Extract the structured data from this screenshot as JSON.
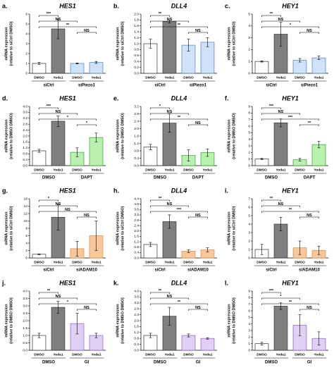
{
  "chart_data": [
    {
      "type": "bar",
      "label": "a.",
      "title": "HES1",
      "ylabel": [
        "mRNA expression",
        "(relative to siCtrl DMSO)"
      ],
      "categories": [
        "DMSO",
        "Yoda1",
        "DMSO",
        "Yoda1"
      ],
      "groups": [
        "siCtrl",
        "siPiezo1"
      ],
      "values": [
        1,
        4.5,
        1.0,
        1.1
      ],
      "errors": [
        0.1,
        1.0,
        0.05,
        0.1
      ],
      "colors": [
        "#ffffff",
        "#7f7f7f",
        "#cfe2f7",
        "#cfe2f7"
      ],
      "edgecolors": [
        "#333333",
        "#333333",
        "#4a7fd0",
        "#4a7fd0"
      ],
      "ylim": [
        0,
        6
      ],
      "yticks": [
        0,
        1,
        2,
        3,
        4,
        5,
        6
      ],
      "brackets": [
        {
          "from": 0,
          "to": 1,
          "label": "***"
        },
        {
          "from": 0,
          "to": 2,
          "label": "NS"
        },
        {
          "from": 0,
          "to": 3,
          "label": "**"
        },
        {
          "from": 2,
          "to": 3,
          "label": "NS"
        }
      ]
    },
    {
      "type": "bar",
      "label": "b.",
      "title": "DLL4",
      "ylabel": [
        "mRNA expression",
        "(relative to siCtrl DMSO)"
      ],
      "categories": [
        "DMSO",
        "Yoda1",
        "DMSO",
        "Yoda1"
      ],
      "groups": [
        "siCtrl",
        "siPiezo1"
      ],
      "values": [
        1,
        1.75,
        0.95,
        1.05
      ],
      "errors": [
        0.15,
        0.05,
        0.2,
        0.15
      ],
      "colors": [
        "#ffffff",
        "#7f7f7f",
        "#cfe2f7",
        "#cfe2f7"
      ],
      "edgecolors": [
        "#333333",
        "#333333",
        "#4a7fd0",
        "#4a7fd0"
      ],
      "ylim": [
        0,
        2
      ],
      "yticks": [
        {
          "value": 0,
          "label": "0.0"
        },
        0.2,
        0.4,
        0.6,
        0.8,
        {
          "value": 1,
          "label": "1.0"
        },
        1.2,
        1.4,
        1.6,
        1.8,
        {
          "value": 2,
          "label": "2.0"
        }
      ],
      "brackets": [
        {
          "from": 0,
          "to": 1,
          "label": "**"
        },
        {
          "from": 0,
          "to": 2,
          "label": "NS"
        },
        {
          "from": 0,
          "to": 3,
          "label": "**"
        },
        {
          "from": 2,
          "to": 3,
          "label": "NS"
        }
      ]
    },
    {
      "type": "bar",
      "label": "c.",
      "title": "HEY1",
      "ylabel": [
        "mRNA expression",
        "(relative to siCtrl DMSO)"
      ],
      "categories": [
        "DMSO",
        "Yoda1",
        "DMSO",
        "Yoda1"
      ],
      "groups": [
        "siCtrl",
        "siPiezo1"
      ],
      "values": [
        1,
        3.3,
        1.1,
        1.3
      ],
      "errors": [
        0.05,
        1.0,
        0.15,
        0.15
      ],
      "colors": [
        "#ffffff",
        "#7f7f7f",
        "#cfe2f7",
        "#cfe2f7"
      ],
      "edgecolors": [
        "#333333",
        "#333333",
        "#4a7fd0",
        "#4a7fd0"
      ],
      "ylim": [
        0,
        5
      ],
      "yticks": [
        0,
        1,
        2,
        3,
        4,
        5
      ],
      "brackets": [
        {
          "from": 0,
          "to": 1,
          "label": "**"
        },
        {
          "from": 0,
          "to": 2,
          "label": "NS"
        },
        {
          "from": 0,
          "to": 3,
          "label": "*"
        },
        {
          "from": 2,
          "to": 3,
          "label": "NS"
        }
      ]
    },
    {
      "type": "bar",
      "label": "d.",
      "title": "HES1",
      "ylabel": [
        "mRNA expression",
        "(relative to DMSO DMSO)"
      ],
      "categories": [
        "DMSO",
        "Yoda1",
        "DMSO",
        "Yoda1"
      ],
      "groups": [
        "DMSO",
        "DAPT"
      ],
      "values": [
        1,
        3.0,
        0.9,
        1.9
      ],
      "errors": [
        0.1,
        0.35,
        0.3,
        0.3
      ],
      "colors": [
        "#ffffff",
        "#7f7f7f",
        "#b9f2ae",
        "#b9f2ae"
      ],
      "edgecolors": [
        "#333333",
        "#333333",
        "#2ea02e",
        "#2ea02e"
      ],
      "ylim": [
        0,
        4
      ],
      "yticks": [
        {
          "value": 0,
          "label": "0.0"
        },
        0.4,
        0.8,
        1.2,
        1.6,
        {
          "value": 2,
          "label": "2.0"
        },
        2.4,
        2.8,
        3.2,
        3.6,
        {
          "value": 4,
          "label": "4.0"
        }
      ],
      "brackets": [
        {
          "from": 0,
          "to": 1,
          "label": "***"
        },
        {
          "from": 0,
          "to": 2,
          "label": "NS"
        },
        {
          "from": 0,
          "to": 3,
          "label": "*"
        },
        {
          "from": 2,
          "to": 3,
          "label": "*"
        }
      ]
    },
    {
      "type": "bar",
      "label": "e.",
      "title": "DLL4",
      "ylabel": [
        "mRNA expression",
        "(relative to DMSO DMSO)"
      ],
      "categories": [
        "DMSO",
        "Yoda1",
        "DMSO",
        "Yoda1"
      ],
      "groups": [
        "DMSO",
        "DAPT"
      ],
      "values": [
        1,
        2.3,
        0.55,
        0.7
      ],
      "errors": [
        0.15,
        0.5,
        0.3,
        0.2
      ],
      "colors": [
        "#ffffff",
        "#7f7f7f",
        "#b9f2ae",
        "#b9f2ae"
      ],
      "edgecolors": [
        "#333333",
        "#333333",
        "#2ea02e",
        "#2ea02e"
      ],
      "ylim": [
        0,
        3.2
      ],
      "yticks": [
        {
          "value": 0,
          "label": "0.0"
        },
        0.4,
        0.8,
        1.2,
        1.6,
        {
          "value": 2,
          "label": "2.0"
        },
        2.4,
        2.8,
        3.2
      ],
      "brackets": [
        {
          "from": 0,
          "to": 1,
          "label": "*"
        },
        {
          "from": 0,
          "to": 2,
          "label": "NS"
        },
        {
          "from": 0,
          "to": 3,
          "label": "**"
        },
        {
          "from": 2,
          "to": 3,
          "label": "NS"
        }
      ]
    },
    {
      "type": "bar",
      "label": "f.",
      "title": "HEY1",
      "ylabel": [
        "mRNA expression",
        "(relative to DMSO DMSO)"
      ],
      "categories": [
        "DMSO",
        "Yoda1",
        "DMSO",
        "Yoda1"
      ],
      "groups": [
        "DMSO",
        "DAPT"
      ],
      "values": [
        1,
        6.5,
        0.9,
        3.2
      ],
      "errors": [
        0.1,
        0.6,
        0.2,
        0.5
      ],
      "colors": [
        "#ffffff",
        "#7f7f7f",
        "#b9f2ae",
        "#b9f2ae"
      ],
      "edgecolors": [
        "#333333",
        "#333333",
        "#2ea02e",
        "#2ea02e"
      ],
      "ylim": [
        0,
        9
      ],
      "yticks": [
        0,
        1,
        2,
        3,
        4,
        5,
        6,
        7,
        8,
        9
      ],
      "brackets": [
        {
          "from": 0,
          "to": 1,
          "label": "***"
        },
        {
          "from": 0,
          "to": 2,
          "label": "NS"
        },
        {
          "from": 0,
          "to": 3,
          "label": "***"
        },
        {
          "from": 2,
          "to": 3,
          "label": "**"
        }
      ]
    },
    {
      "type": "bar",
      "label": "g.",
      "title": "HES1",
      "ylabel": [
        "mRNA expression",
        "(relative to siCtrl DMSO)"
      ],
      "categories": [
        "DMSO",
        "Yoda1",
        "DMSO",
        "Yoda1"
      ],
      "groups": [
        "siCtrl",
        "siADAM10"
      ],
      "values": [
        1,
        11,
        2.5,
        6
      ],
      "errors": [
        0.1,
        3.5,
        2.0,
        4.0
      ],
      "colors": [
        "#ffffff",
        "#7f7f7f",
        "#f8c79b",
        "#f8c79b"
      ],
      "edgecolors": [
        "#333333",
        "#333333",
        "#e08a3c",
        "#e08a3c"
      ],
      "ylim": [
        0,
        16
      ],
      "yticks": [
        0,
        2,
        4,
        6,
        8,
        10,
        12,
        14,
        16
      ],
      "brackets": [
        {
          "from": 0,
          "to": 1,
          "label": "*"
        },
        {
          "from": 0,
          "to": 2,
          "label": "NS"
        },
        {
          "from": 0,
          "to": 3,
          "label": "NS"
        },
        {
          "from": 2,
          "to": 3,
          "label": "NS"
        }
      ]
    },
    {
      "type": "bar",
      "label": "h.",
      "title": "DLL4",
      "ylabel": [
        "mRNA expression",
        "(relative to siCtrl DMSO)"
      ],
      "categories": [
        "DMSO",
        "Yoda1",
        "DMSO",
        "Yoda1"
      ],
      "groups": [
        "siCtrl",
        "siADAM10"
      ],
      "values": [
        1,
        2.7,
        0.5,
        0.6
      ],
      "errors": [
        0.15,
        0.5,
        0.1,
        0.15
      ],
      "colors": [
        "#ffffff",
        "#7f7f7f",
        "#f8c79b",
        "#f8c79b"
      ],
      "edgecolors": [
        "#333333",
        "#333333",
        "#e08a3c",
        "#e08a3c"
      ],
      "ylim": [
        0,
        4.4
      ],
      "yticks": [
        {
          "value": 0,
          "label": "0.0"
        },
        0.4,
        0.8,
        1.2,
        1.6,
        {
          "value": 2,
          "label": "2.0"
        },
        2.4,
        2.8,
        3.2,
        3.6,
        {
          "value": 4,
          "label": "4.0"
        },
        4.4
      ],
      "brackets": [
        {
          "from": 0,
          "to": 1,
          "label": "**"
        },
        {
          "from": 0,
          "to": 2,
          "label": "NS"
        },
        {
          "from": 0,
          "to": 3,
          "label": "***"
        },
        {
          "from": 2,
          "to": 3,
          "label": "NS"
        }
      ]
    },
    {
      "type": "bar",
      "label": "i.",
      "title": "HEY1",
      "ylabel": [
        "mRNA expression",
        "(relative to siCtrl DMSO)"
      ],
      "categories": [
        "DMSO",
        "Yoda1",
        "DMSO",
        "Yoda1"
      ],
      "groups": [
        "siCtrl",
        "siADAM10"
      ],
      "values": [
        1,
        4,
        1.2,
        0.9
      ],
      "errors": [
        0.6,
        0.8,
        0.8,
        0.5
      ],
      "colors": [
        "#ffffff",
        "#7f7f7f",
        "#f8c79b",
        "#f8c79b"
      ],
      "edgecolors": [
        "#333333",
        "#333333",
        "#e08a3c",
        "#e08a3c"
      ],
      "ylim": [
        0,
        7
      ],
      "yticks": [
        0,
        1,
        2,
        3,
        4,
        5,
        6,
        7
      ],
      "brackets": [
        {
          "from": 0,
          "to": 1,
          "label": "**"
        },
        {
          "from": 0,
          "to": 2,
          "label": "NS"
        },
        {
          "from": 0,
          "to": 3,
          "label": "**"
        },
        {
          "from": 2,
          "to": 3,
          "label": "NS"
        }
      ]
    },
    {
      "type": "bar",
      "label": "j.",
      "title": "HES1",
      "ylabel": [
        "mRNA expression",
        "(relative to DMSO DMSO)"
      ],
      "categories": [
        "DMSO",
        "Yoda1",
        "DMSO",
        "Yoda1"
      ],
      "groups": [
        "DMSO",
        "GI"
      ],
      "values": [
        1,
        2.9,
        1.8,
        1.0
      ],
      "errors": [
        0.15,
        0.4,
        0.7,
        0.15
      ],
      "colors": [
        "#ffffff",
        "#7f7f7f",
        "#e0d0f5",
        "#e0d0f5"
      ],
      "edgecolors": [
        "#333333",
        "#333333",
        "#8a5cc8",
        "#8a5cc8"
      ],
      "ylim": [
        0,
        4
      ],
      "yticks": [
        {
          "value": 0,
          "label": "0.0"
        },
        0.5,
        {
          "value": 1,
          "label": "1.0"
        },
        1.5,
        {
          "value": 2,
          "label": "2.0"
        },
        2.5,
        {
          "value": 3,
          "label": "3.0"
        },
        3.5,
        {
          "value": 4,
          "label": "4.0"
        }
      ],
      "brackets": [
        {
          "from": 0,
          "to": 1,
          "label": "**"
        },
        {
          "from": 0,
          "to": 2,
          "label": "NS"
        },
        {
          "from": 0,
          "to": 3,
          "label": "*"
        },
        {
          "from": 2,
          "to": 3,
          "label": "NS"
        }
      ]
    },
    {
      "type": "bar",
      "label": "k.",
      "title": "DLL4",
      "ylabel": [
        "mRNA expression",
        "(relative to DMSO DMSO)"
      ],
      "categories": [
        "DMSO",
        "Yoda1",
        "DMSO",
        "Yoda1"
      ],
      "groups": [
        "DMSO",
        "GI"
      ],
      "values": [
        1,
        2.3,
        1.0,
        0.8
      ],
      "errors": [
        0.15,
        0.6,
        0.1,
        0.05
      ],
      "colors": [
        "#ffffff",
        "#7f7f7f",
        "#e0d0f5",
        "#e0d0f5"
      ],
      "edgecolors": [
        "#333333",
        "#333333",
        "#8a5cc8",
        "#8a5cc8"
      ],
      "ylim": [
        0,
        4
      ],
      "yticks": [
        {
          "value": 0,
          "label": "0.0"
        },
        0.4,
        0.8,
        1.2,
        1.6,
        {
          "value": 2,
          "label": "2.0"
        },
        2.4,
        2.8,
        3.2,
        3.6,
        {
          "value": 4,
          "label": "4.0"
        }
      ],
      "brackets": [
        {
          "from": 0,
          "to": 1,
          "label": "**"
        },
        {
          "from": 0,
          "to": 2,
          "label": "NS"
        },
        {
          "from": 0,
          "to": 3,
          "label": "**"
        },
        {
          "from": 2,
          "to": 3,
          "label": "NS"
        }
      ]
    },
    {
      "type": "bar",
      "label": "l.",
      "title": "HEY1",
      "ylabel": [
        "mRNA expression",
        "(relative to DMSO DMSO)"
      ],
      "categories": [
        "DMSO",
        "Yoda1",
        "DMSO",
        "Yoda1"
      ],
      "groups": [
        "DMSO",
        "GI"
      ],
      "values": [
        1,
        6.7,
        3.8,
        1.8
      ],
      "errors": [
        0.2,
        0.5,
        1.6,
        1.0
      ],
      "colors": [
        "#ffffff",
        "#7f7f7f",
        "#e0d0f5",
        "#e0d0f5"
      ],
      "edgecolors": [
        "#333333",
        "#333333",
        "#8a5cc8",
        "#8a5cc8"
      ],
      "ylim": [
        0,
        9
      ],
      "yticks": [
        0,
        1,
        2,
        3,
        4,
        5,
        6,
        7,
        8,
        9
      ],
      "brackets": [
        {
          "from": 0,
          "to": 1,
          "label": "***"
        },
        {
          "from": 0,
          "to": 2,
          "label": "*"
        },
        {
          "from": 0,
          "to": 3,
          "label": "**"
        },
        {
          "from": 2,
          "to": 3,
          "label": "NS"
        }
      ]
    }
  ]
}
